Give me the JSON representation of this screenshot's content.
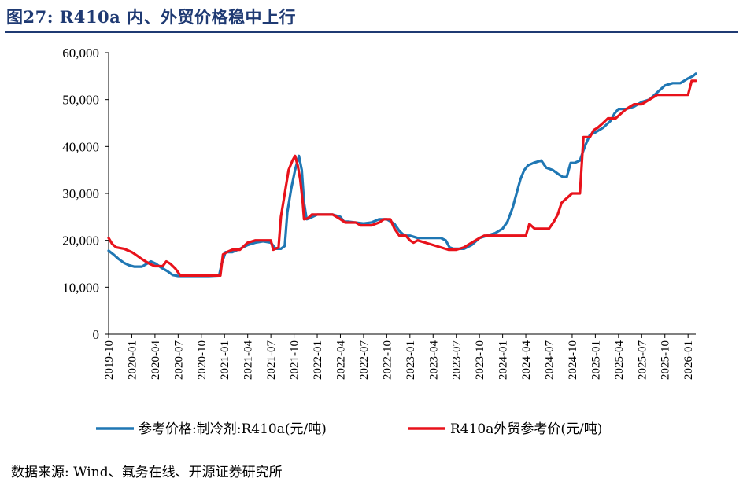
{
  "figure": {
    "title": "图27:  R410a 内、外贸价格稳中上行",
    "source": "数据来源:  Wind、氟务在线、开源证券研究所"
  },
  "chart_data": {
    "type": "line",
    "y_ticks": [
      0,
      10000,
      20000,
      30000,
      40000,
      50000,
      60000
    ],
    "y_tick_labels": [
      "0",
      "10,000",
      "20,000",
      "30,000",
      "40,000",
      "50,000",
      "60,000"
    ],
    "ylim": [
      0,
      60000
    ],
    "x_range": [
      "2019-10",
      "2026-02"
    ],
    "x_tick_labels": [
      "2019-10",
      "2020-01",
      "2020-04",
      "2020-07",
      "2020-10",
      "2021-01",
      "2021-04",
      "2021-07",
      "2021-10",
      "2022-01",
      "2022-04",
      "2022-07",
      "2022-10",
      "2023-01",
      "2023-04",
      "2023-07",
      "2023-10",
      "2024-01",
      "2024-04",
      "2024-07",
      "2024-10",
      "2025-01",
      "2025-04",
      "2025-07",
      "2025-10",
      "2026-01"
    ],
    "grid": false,
    "legend_position": "bottom",
    "series": [
      {
        "name": "参考价格:制冷剂:R410a(元/吨)",
        "color": "#1f77b4",
        "points": [
          [
            "2019-10-01",
            17800
          ],
          [
            "2019-10-20",
            17000
          ],
          [
            "2019-11-10",
            16000
          ],
          [
            "2019-12-01",
            15200
          ],
          [
            "2019-12-20",
            14700
          ],
          [
            "2020-01-10",
            14400
          ],
          [
            "2020-02-10",
            14400
          ],
          [
            "2020-03-15",
            15500
          ],
          [
            "2020-04-05",
            15000
          ],
          [
            "2020-04-25",
            14200
          ],
          [
            "2020-05-20",
            13400
          ],
          [
            "2020-06-10",
            12600
          ],
          [
            "2020-07-01",
            12400
          ],
          [
            "2020-08-01",
            12400
          ],
          [
            "2020-09-01",
            12400
          ],
          [
            "2020-10-01",
            12400
          ],
          [
            "2020-11-01",
            12400
          ],
          [
            "2020-12-10",
            12500
          ],
          [
            "2020-12-20",
            15000
          ],
          [
            "2021-01-05",
            17500
          ],
          [
            "2021-02-01",
            17500
          ],
          [
            "2021-03-01",
            18200
          ],
          [
            "2021-04-01",
            19000
          ],
          [
            "2021-05-01",
            19500
          ],
          [
            "2021-06-01",
            19800
          ],
          [
            "2021-07-01",
            19500
          ],
          [
            "2021-07-20",
            18200
          ],
          [
            "2021-08-10",
            18200
          ],
          [
            "2021-08-25",
            18800
          ],
          [
            "2021-09-05",
            26000
          ],
          [
            "2021-09-20",
            31000
          ],
          [
            "2021-10-05",
            35000
          ],
          [
            "2021-10-20",
            38000
          ],
          [
            "2021-11-01",
            35000
          ],
          [
            "2021-11-10",
            28000
          ],
          [
            "2021-11-20",
            24500
          ],
          [
            "2021-12-01",
            24700
          ],
          [
            "2022-01-01",
            25500
          ],
          [
            "2022-02-01",
            25500
          ],
          [
            "2022-03-01",
            25500
          ],
          [
            "2022-04-01",
            25000
          ],
          [
            "2022-04-15",
            24000
          ],
          [
            "2022-05-01",
            24000
          ],
          [
            "2022-07-01",
            23600
          ],
          [
            "2022-08-01",
            23800
          ],
          [
            "2022-09-01",
            24500
          ],
          [
            "2022-10-01",
            24500
          ],
          [
            "2022-11-01",
            23500
          ],
          [
            "2022-11-20",
            22000
          ],
          [
            "2022-12-10",
            21000
          ],
          [
            "2023-01-01",
            21000
          ],
          [
            "2023-02-01",
            20500
          ],
          [
            "2023-03-01",
            20500
          ],
          [
            "2023-04-01",
            20500
          ],
          [
            "2023-05-01",
            20500
          ],
          [
            "2023-05-20",
            20000
          ],
          [
            "2023-06-05",
            18500
          ],
          [
            "2023-06-20",
            18200
          ],
          [
            "2023-07-10",
            18200
          ],
          [
            "2023-08-01",
            18200
          ],
          [
            "2023-09-01",
            19000
          ],
          [
            "2023-10-01",
            20500
          ],
          [
            "2023-11-01",
            21000
          ],
          [
            "2023-12-01",
            21500
          ],
          [
            "2024-01-01",
            22500
          ],
          [
            "2024-01-20",
            24000
          ],
          [
            "2024-02-10",
            27000
          ],
          [
            "2024-02-25",
            30000
          ],
          [
            "2024-03-10",
            33000
          ],
          [
            "2024-03-25",
            35000
          ],
          [
            "2024-04-10",
            36000
          ],
          [
            "2024-05-01",
            36500
          ],
          [
            "2024-06-01",
            37000
          ],
          [
            "2024-06-20",
            35500
          ],
          [
            "2024-07-15",
            35000
          ],
          [
            "2024-08-10",
            34000
          ],
          [
            "2024-08-25",
            33500
          ],
          [
            "2024-09-10",
            33500
          ],
          [
            "2024-09-25",
            36500
          ],
          [
            "2024-10-10",
            36500
          ],
          [
            "2024-11-01",
            37000
          ],
          [
            "2024-11-20",
            40000
          ],
          [
            "2024-12-10",
            42500
          ],
          [
            "2025-01-01",
            43000
          ],
          [
            "2025-02-01",
            44000
          ],
          [
            "2025-03-01",
            45500
          ],
          [
            "2025-03-15",
            47000
          ],
          [
            "2025-04-01",
            48000
          ],
          [
            "2025-05-01",
            48000
          ],
          [
            "2025-06-01",
            48500
          ],
          [
            "2025-07-01",
            49500
          ],
          [
            "2025-08-01",
            50000
          ],
          [
            "2025-09-01",
            51500
          ],
          [
            "2025-10-01",
            53000
          ],
          [
            "2025-11-01",
            53500
          ],
          [
            "2025-12-01",
            53500
          ],
          [
            "2026-01-01",
            54500
          ],
          [
            "2026-01-20",
            55000
          ],
          [
            "2026-02-01",
            55500
          ]
        ]
      },
      {
        "name": "R410a外贸参考价(元/吨)",
        "color": "#e8121b",
        "points": [
          [
            "2019-10-01",
            20500
          ],
          [
            "2019-10-15",
            19200
          ],
          [
            "2019-11-01",
            18500
          ],
          [
            "2019-12-01",
            18200
          ],
          [
            "2020-01-01",
            17500
          ],
          [
            "2020-01-20",
            16800
          ],
          [
            "2020-02-10",
            16000
          ],
          [
            "2020-03-10",
            15000
          ],
          [
            "2020-04-01",
            14500
          ],
          [
            "2020-05-01",
            14500
          ],
          [
            "2020-05-15",
            15500
          ],
          [
            "2020-06-01",
            15000
          ],
          [
            "2020-06-20",
            14000
          ],
          [
            "2020-07-10",
            12500
          ],
          [
            "2020-08-01",
            12500
          ],
          [
            "2020-10-01",
            12500
          ],
          [
            "2020-12-15",
            12500
          ],
          [
            "2020-12-25",
            17000
          ],
          [
            "2021-01-10",
            17500
          ],
          [
            "2021-02-01",
            18000
          ],
          [
            "2021-03-01",
            18000
          ],
          [
            "2021-04-01",
            19500
          ],
          [
            "2021-05-01",
            20000
          ],
          [
            "2021-06-01",
            20000
          ],
          [
            "2021-07-01",
            20000
          ],
          [
            "2021-07-10",
            18000
          ],
          [
            "2021-08-01",
            18500
          ],
          [
            "2021-08-10",
            25000
          ],
          [
            "2021-08-25",
            30000
          ],
          [
            "2021-09-10",
            35000
          ],
          [
            "2021-09-25",
            37000
          ],
          [
            "2021-10-05",
            38000
          ],
          [
            "2021-10-15",
            36000
          ],
          [
            "2021-10-25",
            33000
          ],
          [
            "2021-11-05",
            28000
          ],
          [
            "2021-11-10",
            24500
          ],
          [
            "2021-11-25",
            24700
          ],
          [
            "2021-12-10",
            25500
          ],
          [
            "2022-01-01",
            25500
          ],
          [
            "2022-03-01",
            25500
          ],
          [
            "2022-04-01",
            24500
          ],
          [
            "2022-04-20",
            23800
          ],
          [
            "2022-06-01",
            23800
          ],
          [
            "2022-06-20",
            23200
          ],
          [
            "2022-08-01",
            23200
          ],
          [
            "2022-09-01",
            23800
          ],
          [
            "2022-09-20",
            24500
          ],
          [
            "2022-10-15",
            24500
          ],
          [
            "2022-11-01",
            22500
          ],
          [
            "2022-11-20",
            21000
          ],
          [
            "2022-12-15",
            21000
          ],
          [
            "2023-01-01",
            20000
          ],
          [
            "2023-01-15",
            19500
          ],
          [
            "2023-02-01",
            20000
          ],
          [
            "2023-03-01",
            19500
          ],
          [
            "2023-04-01",
            19000
          ],
          [
            "2023-05-01",
            18500
          ],
          [
            "2023-06-01",
            18000
          ],
          [
            "2023-07-01",
            18000
          ],
          [
            "2023-08-01",
            18500
          ],
          [
            "2023-09-01",
            19500
          ],
          [
            "2023-10-01",
            20500
          ],
          [
            "2023-10-20",
            21000
          ],
          [
            "2023-12-01",
            21000
          ],
          [
            "2024-01-01",
            21000
          ],
          [
            "2024-02-01",
            21000
          ],
          [
            "2024-03-01",
            21000
          ],
          [
            "2024-04-01",
            21000
          ],
          [
            "2024-04-15",
            23500
          ],
          [
            "2024-05-05",
            22500
          ],
          [
            "2024-06-01",
            22500
          ],
          [
            "2024-07-01",
            22500
          ],
          [
            "2024-07-20",
            24000
          ],
          [
            "2024-08-05",
            25500
          ],
          [
            "2024-08-20",
            28000
          ],
          [
            "2024-09-10",
            29000
          ],
          [
            "2024-10-01",
            30000
          ],
          [
            "2024-11-01",
            30000
          ],
          [
            "2024-11-15",
            42000
          ],
          [
            "2024-12-10",
            42000
          ],
          [
            "2024-12-25",
            43500
          ],
          [
            "2025-01-10",
            44000
          ],
          [
            "2025-02-01",
            45000
          ],
          [
            "2025-02-20",
            46000
          ],
          [
            "2025-03-20",
            46000
          ],
          [
            "2025-04-10",
            47000
          ],
          [
            "2025-05-01",
            48000
          ],
          [
            "2025-06-01",
            49000
          ],
          [
            "2025-07-01",
            49000
          ],
          [
            "2025-08-01",
            50000
          ],
          [
            "2025-09-01",
            51000
          ],
          [
            "2025-10-01",
            51000
          ],
          [
            "2025-11-01",
            51000
          ],
          [
            "2025-12-01",
            51000
          ],
          [
            "2026-01-01",
            51000
          ],
          [
            "2026-01-15",
            54000
          ],
          [
            "2026-02-01",
            54000
          ]
        ]
      }
    ]
  }
}
